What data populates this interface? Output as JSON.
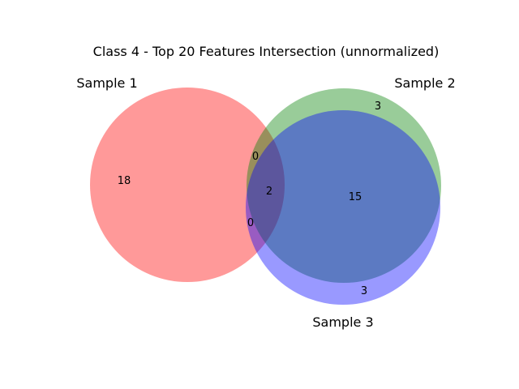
{
  "chart_data": {
    "type": "venn",
    "title": "Class 4 - Top 20 Features Intersection (unnormalized)",
    "sets": [
      {
        "name": "Sample 1",
        "color": "#ff0000",
        "size": 20
      },
      {
        "name": "Sample 2",
        "color": "#008000",
        "size": 20
      },
      {
        "name": "Sample 3",
        "color": "#0000ff",
        "size": 20
      }
    ],
    "regions": [
      {
        "id": "100",
        "sets": [
          "Sample 1"
        ],
        "value": 18
      },
      {
        "id": "010",
        "sets": [
          "Sample 2"
        ],
        "value": 3
      },
      {
        "id": "001",
        "sets": [
          "Sample 3"
        ],
        "value": 3
      },
      {
        "id": "110",
        "sets": [
          "Sample 1",
          "Sample 2"
        ],
        "value": 0
      },
      {
        "id": "101",
        "sets": [
          "Sample 1",
          "Sample 3"
        ],
        "value": 0
      },
      {
        "id": "011",
        "sets": [
          "Sample 2",
          "Sample 3"
        ],
        "value": 15
      },
      {
        "id": "111",
        "sets": [
          "Sample 1",
          "Sample 2",
          "Sample 3"
        ],
        "value": 2
      }
    ],
    "fill_alpha": 0.4
  }
}
